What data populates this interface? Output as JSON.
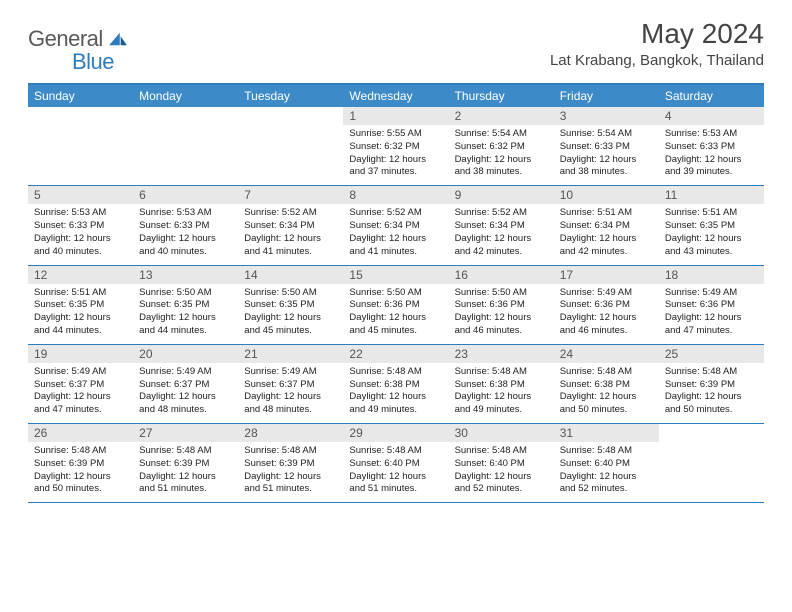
{
  "brand": {
    "part1": "General",
    "part2": "Blue"
  },
  "title": "May 2024",
  "location": "Lat Krabang, Bangkok, Thailand",
  "colors": {
    "header_bg": "#3d8ac9",
    "border": "#2f7bbf",
    "daynum_bg": "#e8e8e8",
    "text": "#222222"
  },
  "day_names": [
    "Sunday",
    "Monday",
    "Tuesday",
    "Wednesday",
    "Thursday",
    "Friday",
    "Saturday"
  ],
  "weeks": [
    [
      {
        "empty": true
      },
      {
        "empty": true
      },
      {
        "empty": true
      },
      {
        "n": "1",
        "sr": "5:55 AM",
        "ss": "6:32 PM",
        "dl": "12 hours and 37 minutes."
      },
      {
        "n": "2",
        "sr": "5:54 AM",
        "ss": "6:32 PM",
        "dl": "12 hours and 38 minutes."
      },
      {
        "n": "3",
        "sr": "5:54 AM",
        "ss": "6:33 PM",
        "dl": "12 hours and 38 minutes."
      },
      {
        "n": "4",
        "sr": "5:53 AM",
        "ss": "6:33 PM",
        "dl": "12 hours and 39 minutes."
      }
    ],
    [
      {
        "n": "5",
        "sr": "5:53 AM",
        "ss": "6:33 PM",
        "dl": "12 hours and 40 minutes."
      },
      {
        "n": "6",
        "sr": "5:53 AM",
        "ss": "6:33 PM",
        "dl": "12 hours and 40 minutes."
      },
      {
        "n": "7",
        "sr": "5:52 AM",
        "ss": "6:34 PM",
        "dl": "12 hours and 41 minutes."
      },
      {
        "n": "8",
        "sr": "5:52 AM",
        "ss": "6:34 PM",
        "dl": "12 hours and 41 minutes."
      },
      {
        "n": "9",
        "sr": "5:52 AM",
        "ss": "6:34 PM",
        "dl": "12 hours and 42 minutes."
      },
      {
        "n": "10",
        "sr": "5:51 AM",
        "ss": "6:34 PM",
        "dl": "12 hours and 42 minutes."
      },
      {
        "n": "11",
        "sr": "5:51 AM",
        "ss": "6:35 PM",
        "dl": "12 hours and 43 minutes."
      }
    ],
    [
      {
        "n": "12",
        "sr": "5:51 AM",
        "ss": "6:35 PM",
        "dl": "12 hours and 44 minutes."
      },
      {
        "n": "13",
        "sr": "5:50 AM",
        "ss": "6:35 PM",
        "dl": "12 hours and 44 minutes."
      },
      {
        "n": "14",
        "sr": "5:50 AM",
        "ss": "6:35 PM",
        "dl": "12 hours and 45 minutes."
      },
      {
        "n": "15",
        "sr": "5:50 AM",
        "ss": "6:36 PM",
        "dl": "12 hours and 45 minutes."
      },
      {
        "n": "16",
        "sr": "5:50 AM",
        "ss": "6:36 PM",
        "dl": "12 hours and 46 minutes."
      },
      {
        "n": "17",
        "sr": "5:49 AM",
        "ss": "6:36 PM",
        "dl": "12 hours and 46 minutes."
      },
      {
        "n": "18",
        "sr": "5:49 AM",
        "ss": "6:36 PM",
        "dl": "12 hours and 47 minutes."
      }
    ],
    [
      {
        "n": "19",
        "sr": "5:49 AM",
        "ss": "6:37 PM",
        "dl": "12 hours and 47 minutes."
      },
      {
        "n": "20",
        "sr": "5:49 AM",
        "ss": "6:37 PM",
        "dl": "12 hours and 48 minutes."
      },
      {
        "n": "21",
        "sr": "5:49 AM",
        "ss": "6:37 PM",
        "dl": "12 hours and 48 minutes."
      },
      {
        "n": "22",
        "sr": "5:48 AM",
        "ss": "6:38 PM",
        "dl": "12 hours and 49 minutes."
      },
      {
        "n": "23",
        "sr": "5:48 AM",
        "ss": "6:38 PM",
        "dl": "12 hours and 49 minutes."
      },
      {
        "n": "24",
        "sr": "5:48 AM",
        "ss": "6:38 PM",
        "dl": "12 hours and 50 minutes."
      },
      {
        "n": "25",
        "sr": "5:48 AM",
        "ss": "6:39 PM",
        "dl": "12 hours and 50 minutes."
      }
    ],
    [
      {
        "n": "26",
        "sr": "5:48 AM",
        "ss": "6:39 PM",
        "dl": "12 hours and 50 minutes."
      },
      {
        "n": "27",
        "sr": "5:48 AM",
        "ss": "6:39 PM",
        "dl": "12 hours and 51 minutes."
      },
      {
        "n": "28",
        "sr": "5:48 AM",
        "ss": "6:39 PM",
        "dl": "12 hours and 51 minutes."
      },
      {
        "n": "29",
        "sr": "5:48 AM",
        "ss": "6:40 PM",
        "dl": "12 hours and 51 minutes."
      },
      {
        "n": "30",
        "sr": "5:48 AM",
        "ss": "6:40 PM",
        "dl": "12 hours and 52 minutes."
      },
      {
        "n": "31",
        "sr": "5:48 AM",
        "ss": "6:40 PM",
        "dl": "12 hours and 52 minutes."
      },
      {
        "empty": true
      }
    ]
  ],
  "labels": {
    "sunrise": "Sunrise:",
    "sunset": "Sunset:",
    "daylight": "Daylight:"
  }
}
